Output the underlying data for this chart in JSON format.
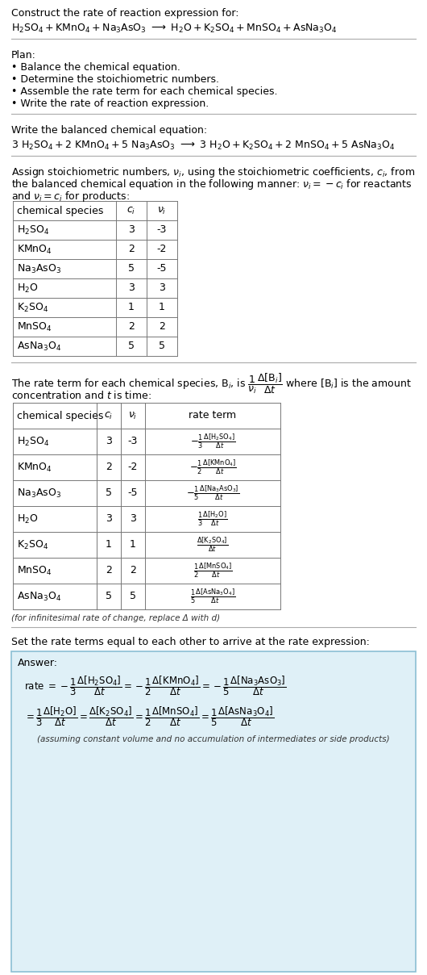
{
  "title_line1": "Construct the rate of reaction expression for:",
  "plan_header": "Plan:",
  "plan_items": [
    "• Balance the chemical equation.",
    "• Determine the stoichiometric numbers.",
    "• Assemble the rate term for each chemical species.",
    "• Write the rate of reaction expression."
  ],
  "balanced_header": "Write the balanced chemical equation:",
  "table1_headers": [
    "chemical species",
    "c_i",
    "v_i"
  ],
  "table1_species": [
    "H$_2$SO$_4$",
    "KMnO$_4$",
    "Na$_3$AsO$_3$",
    "H$_2$O",
    "K$_2$SO$_4$",
    "MnSO$_4$",
    "AsNa$_3$O$_4$"
  ],
  "table1_ci": [
    3,
    2,
    5,
    3,
    1,
    2,
    5
  ],
  "table1_vi": [
    -3,
    -2,
    -5,
    3,
    1,
    2,
    5
  ],
  "table2_headers": [
    "chemical species",
    "c_i",
    "v_i",
    "rate term"
  ],
  "table2_species": [
    "H$_2$SO$_4$",
    "KMnO$_4$",
    "Na$_3$AsO$_3$",
    "H$_2$O",
    "K$_2$SO$_4$",
    "MnSO$_4$",
    "AsNa$_3$O$_4$"
  ],
  "table2_ci": [
    3,
    2,
    5,
    3,
    1,
    2,
    5
  ],
  "table2_vi": [
    -3,
    -2,
    -5,
    3,
    1,
    2,
    5
  ],
  "infinitesimal_note": "(for infinitesimal rate of change, replace Δ with d)",
  "set_equal_text": "Set the rate terms equal to each other to arrive at the rate expression:",
  "answer_label": "Answer:",
  "answer_box_color": "#dff0f7",
  "answer_border_color": "#8bbfd4",
  "bg_color": "#ffffff",
  "separator_color": "#aaaaaa"
}
